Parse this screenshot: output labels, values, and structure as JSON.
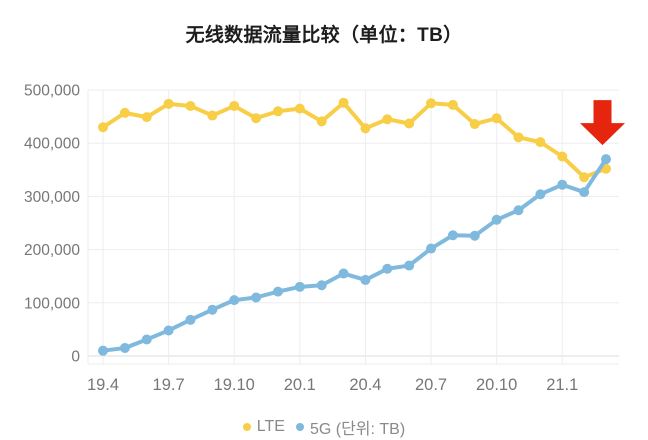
{
  "title": "无线数据流量比较（单位：TB）",
  "legend": {
    "items": [
      {
        "label": "LTE",
        "color": "#F8CE47"
      },
      {
        "label": "5G (단위: TB)",
        "color": "#7FB9DD"
      }
    ]
  },
  "colors": {
    "lte": "#F8CE47",
    "fiveg": "#7FB9DD",
    "arrow_red": "#E6250E",
    "grid": "#EDEDED",
    "baseline": "#DCDCDC",
    "tick_text": "#77777A",
    "title_text": "#1D1D1F",
    "legend_text": "#8A8A8E"
  },
  "chart_data": {
    "type": "line",
    "title": "无线数据流量比较（单位：TB）",
    "categories": [
      "19.4",
      "19.5",
      "19.6",
      "19.7",
      "19.8",
      "19.9",
      "19.10",
      "19.11",
      "19.12",
      "20.1",
      "20.2",
      "20.3",
      "20.4",
      "20.5",
      "20.6",
      "20.7",
      "20.8",
      "20.9",
      "20.10",
      "20.11",
      "20.12",
      "21.1",
      "21.2",
      "21.3"
    ],
    "x_tick_every": 3,
    "x_tick_labels": [
      "19.4",
      "19.7",
      "19.10",
      "20.1",
      "20.4",
      "20.7",
      "20.10",
      "21.1"
    ],
    "series": [
      {
        "name": "LTE",
        "color": "#F8CE47",
        "values": [
          430000,
          457000,
          449000,
          474000,
          470000,
          452000,
          470000,
          447000,
          460000,
          465000,
          441000,
          476000,
          428000,
          445000,
          437000,
          475000,
          472000,
          436000,
          447000,
          411000,
          402000,
          375000,
          336000,
          352000
        ]
      },
      {
        "name": "5G",
        "color": "#7FB9DD",
        "values": [
          10000,
          15000,
          31000,
          48000,
          68000,
          87000,
          105000,
          110000,
          121000,
          130000,
          133000,
          155000,
          143000,
          164000,
          170000,
          202000,
          227000,
          226000,
          256000,
          274000,
          304000,
          322000,
          308000,
          370000
        ]
      }
    ],
    "ylim": [
      0,
      500000
    ],
    "yticks": [
      0,
      100000,
      200000,
      300000,
      400000,
      500000
    ],
    "ytick_labels": [
      "0",
      "100,000",
      "200,000",
      "300,000",
      "400,000",
      "500,000"
    ],
    "grid": true,
    "legend_position": "bottom",
    "annotation": {
      "type": "arrow-down",
      "color": "#E6250E",
      "target_series": "5G",
      "target_category": "21.3"
    }
  }
}
